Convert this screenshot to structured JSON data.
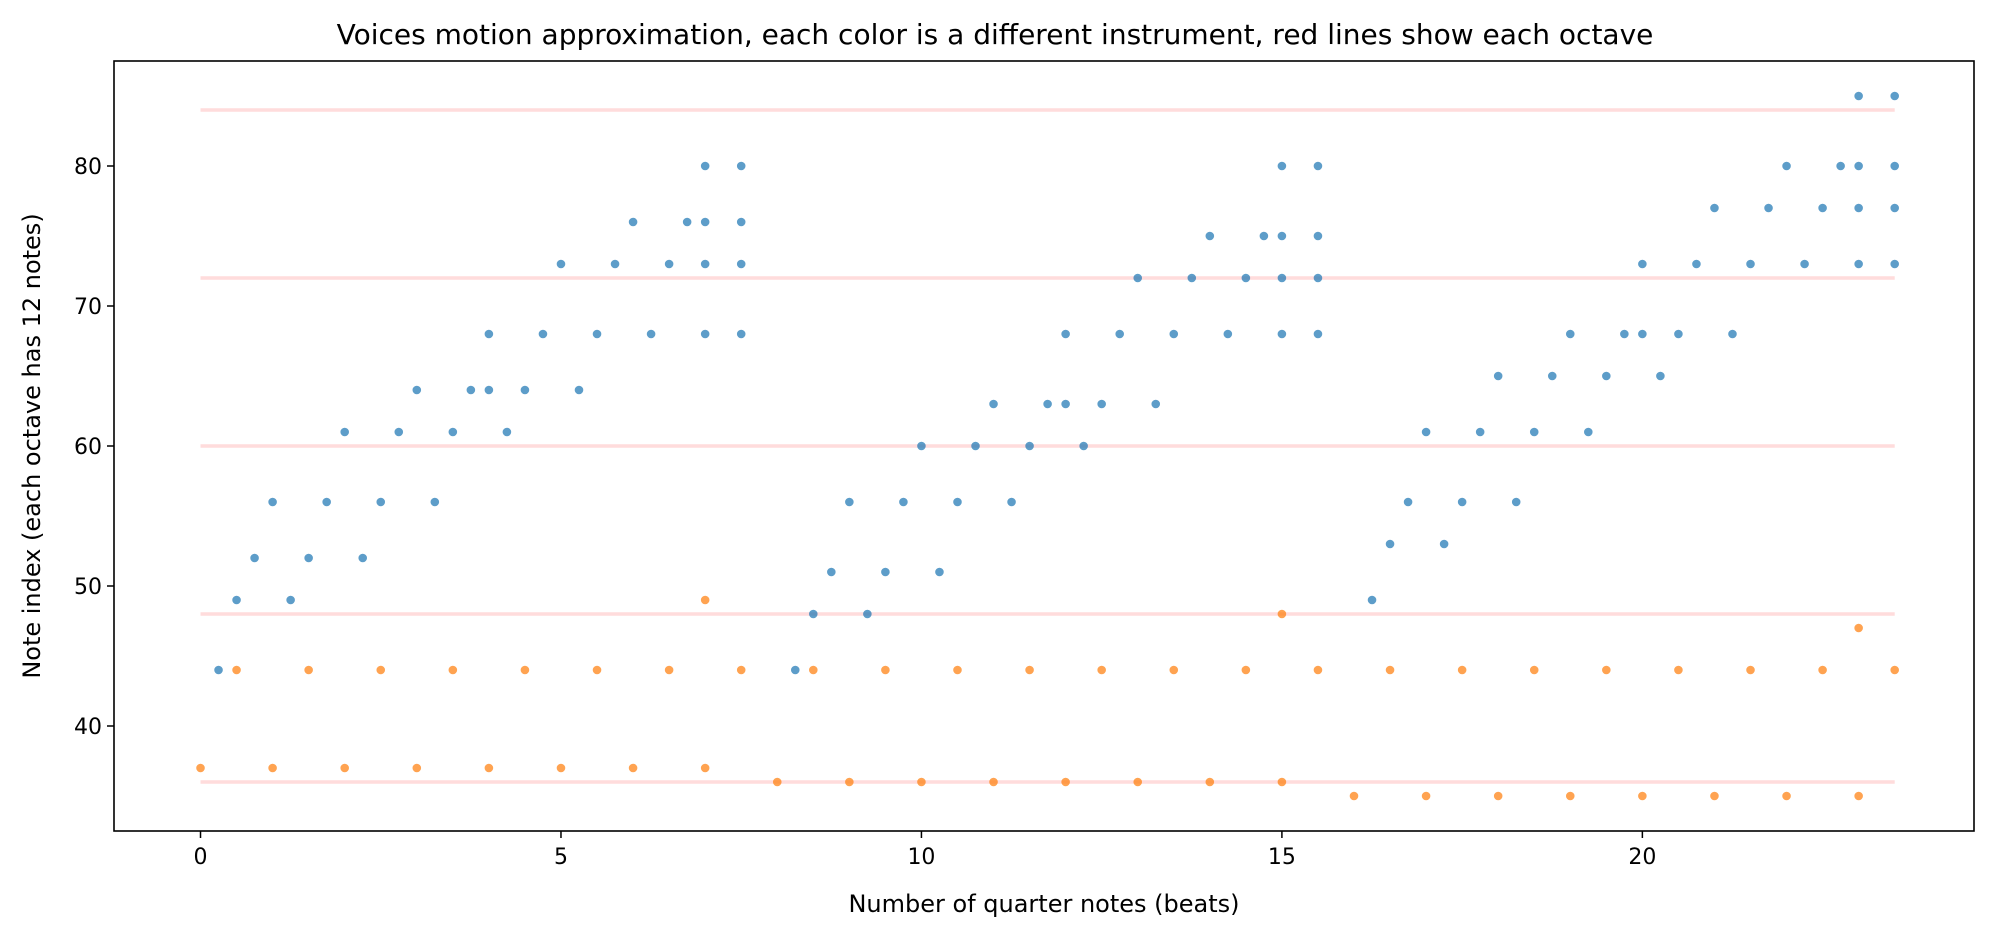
{
  "chart_data": {
    "type": "scatter",
    "title": "Voices motion approximation, each color is a different instrument, red lines show each octave",
    "xlabel": "Number of quarter notes (beats)",
    "ylabel": "Note index (each octave has 12 notes)",
    "xlim": [
      -1.2,
      24.6
    ],
    "ylim": [
      32.5,
      87.5
    ],
    "xticks": [
      0,
      5,
      10,
      15,
      20
    ],
    "yticks": [
      40,
      50,
      60,
      70,
      80
    ],
    "grid": false,
    "octave_lines": {
      "y": [
        36,
        48,
        60,
        72,
        84
      ],
      "x_range": [
        0,
        23.5
      ],
      "color": "#ffdcdc"
    },
    "series": [
      {
        "color": "#1f77b4",
        "points": [
          [
            0.25,
            44
          ],
          [
            0.5,
            49
          ],
          [
            0.75,
            52
          ],
          [
            1,
            56
          ],
          [
            1.25,
            49
          ],
          [
            1.5,
            52
          ],
          [
            1.75,
            56
          ],
          [
            2,
            61
          ],
          [
            2.25,
            52
          ],
          [
            2.5,
            56
          ],
          [
            2.75,
            61
          ],
          [
            3,
            64
          ],
          [
            3.25,
            56
          ],
          [
            3.5,
            61
          ],
          [
            3.75,
            64
          ],
          [
            4,
            64
          ],
          [
            4,
            68
          ],
          [
            4.25,
            61
          ],
          [
            4.5,
            64
          ],
          [
            4.75,
            68
          ],
          [
            5,
            73
          ],
          [
            5.25,
            64
          ],
          [
            5.5,
            68
          ],
          [
            5.75,
            73
          ],
          [
            6,
            76
          ],
          [
            6.25,
            68
          ],
          [
            6.5,
            73
          ],
          [
            6.75,
            76
          ],
          [
            7,
            68
          ],
          [
            7,
            73
          ],
          [
            7,
            76
          ],
          [
            7,
            80
          ],
          [
            7.5,
            68
          ],
          [
            7.5,
            73
          ],
          [
            7.5,
            76
          ],
          [
            7.5,
            80
          ],
          [
            8.25,
            44
          ],
          [
            8.5,
            48
          ],
          [
            8.75,
            51
          ],
          [
            9,
            56
          ],
          [
            9.25,
            48
          ],
          [
            9.5,
            51
          ],
          [
            9.75,
            56
          ],
          [
            10,
            60
          ],
          [
            10.25,
            51
          ],
          [
            10.5,
            56
          ],
          [
            10.75,
            60
          ],
          [
            11,
            63
          ],
          [
            11.25,
            56
          ],
          [
            11.5,
            60
          ],
          [
            11.75,
            63
          ],
          [
            12,
            63
          ],
          [
            12,
            68
          ],
          [
            12.25,
            60
          ],
          [
            12.5,
            63
          ],
          [
            12.75,
            68
          ],
          [
            13,
            72
          ],
          [
            13.25,
            63
          ],
          [
            13.5,
            68
          ],
          [
            13.75,
            72
          ],
          [
            14,
            75
          ],
          [
            14.25,
            68
          ],
          [
            14.5,
            72
          ],
          [
            14.75,
            75
          ],
          [
            15,
            68
          ],
          [
            15,
            72
          ],
          [
            15,
            75
          ],
          [
            15,
            80
          ],
          [
            15.5,
            68
          ],
          [
            15.5,
            72
          ],
          [
            15.5,
            75
          ],
          [
            15.5,
            80
          ],
          [
            16.25,
            49
          ],
          [
            16.5,
            53
          ],
          [
            16.75,
            56
          ],
          [
            17,
            61
          ],
          [
            17.25,
            53
          ],
          [
            17.5,
            56
          ],
          [
            17.75,
            61
          ],
          [
            18,
            65
          ],
          [
            18.25,
            56
          ],
          [
            18.5,
            61
          ],
          [
            18.75,
            65
          ],
          [
            19,
            68
          ],
          [
            19.25,
            61
          ],
          [
            19.5,
            65
          ],
          [
            19.75,
            68
          ],
          [
            20,
            68
          ],
          [
            20,
            73
          ],
          [
            20.25,
            65
          ],
          [
            20.5,
            68
          ],
          [
            20.75,
            73
          ],
          [
            21,
            77
          ],
          [
            21.25,
            68
          ],
          [
            21.5,
            73
          ],
          [
            21.75,
            77
          ],
          [
            22,
            80
          ],
          [
            22.25,
            73
          ],
          [
            22.5,
            77
          ],
          [
            22.75,
            80
          ],
          [
            23,
            73
          ],
          [
            23,
            77
          ],
          [
            23,
            80
          ],
          [
            23,
            85
          ],
          [
            23.5,
            73
          ],
          [
            23.5,
            77
          ],
          [
            23.5,
            80
          ],
          [
            23.5,
            85
          ]
        ]
      },
      {
        "color": "#ff7f0e",
        "points": [
          [
            0,
            37
          ],
          [
            0.5,
            44
          ],
          [
            1,
            37
          ],
          [
            1.5,
            44
          ],
          [
            2,
            37
          ],
          [
            2.5,
            44
          ],
          [
            3,
            37
          ],
          [
            3.5,
            44
          ],
          [
            4,
            37
          ],
          [
            4.5,
            44
          ],
          [
            5,
            37
          ],
          [
            5.5,
            44
          ],
          [
            6,
            37
          ],
          [
            6.5,
            44
          ],
          [
            7,
            37
          ],
          [
            7,
            49
          ],
          [
            7.5,
            44
          ],
          [
            8,
            36
          ],
          [
            8.5,
            44
          ],
          [
            9,
            36
          ],
          [
            9.5,
            44
          ],
          [
            10,
            36
          ],
          [
            10.5,
            44
          ],
          [
            11,
            36
          ],
          [
            11.5,
            44
          ],
          [
            12,
            36
          ],
          [
            12.5,
            44
          ],
          [
            13,
            36
          ],
          [
            13.5,
            44
          ],
          [
            14,
            36
          ],
          [
            14.5,
            44
          ],
          [
            15,
            36
          ],
          [
            15,
            48
          ],
          [
            15.5,
            44
          ],
          [
            16,
            35
          ],
          [
            16.5,
            44
          ],
          [
            17,
            35
          ],
          [
            17.5,
            44
          ],
          [
            18,
            35
          ],
          [
            18.5,
            44
          ],
          [
            19,
            35
          ],
          [
            19.5,
            44
          ],
          [
            20,
            35
          ],
          [
            20.5,
            44
          ],
          [
            21,
            35
          ],
          [
            21.5,
            44
          ],
          [
            22,
            35
          ],
          [
            22.5,
            44
          ],
          [
            23,
            35
          ],
          [
            23,
            47
          ],
          [
            23.5,
            44
          ]
        ]
      }
    ]
  }
}
